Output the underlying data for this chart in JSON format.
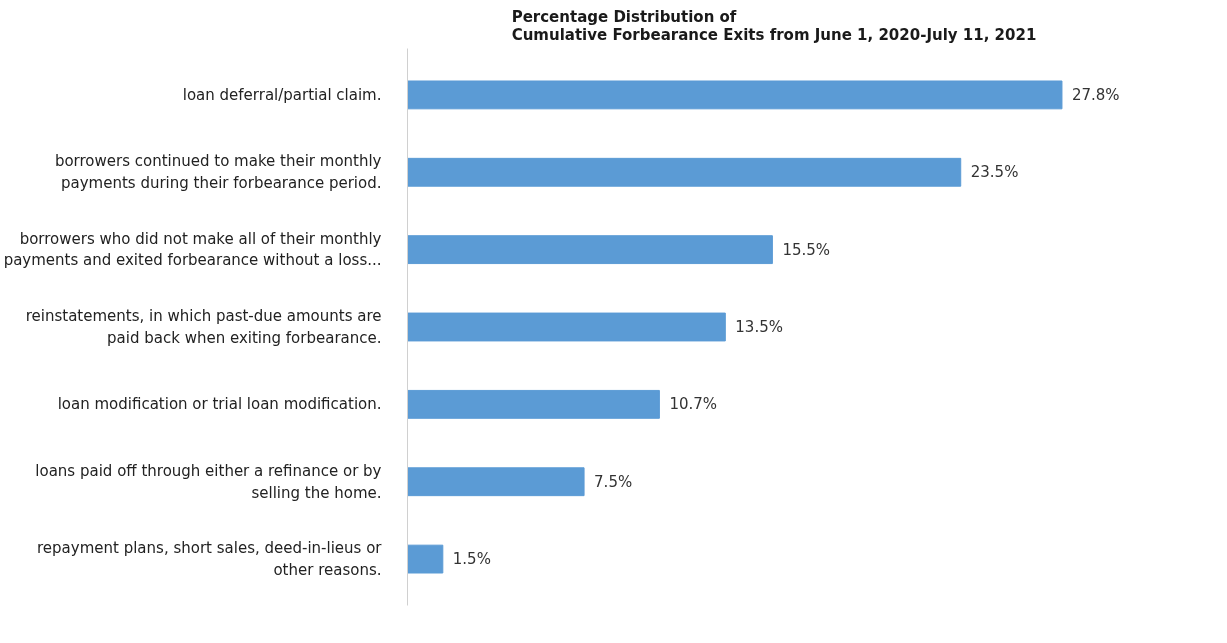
{
  "chart_data": {
    "type": "bar",
    "orientation": "horizontal",
    "title": "Percentage Distribution of\nCumulative Forbearance Exits from June 1, 2020-July 11, 2021",
    "categories": [
      "loan deferral/partial claim.",
      "borrowers continued to make their monthly\npayments during their forbearance period.",
      "borrowers who did not make all of their monthly\npayments and exited forbearance without a loss...",
      "reinstatements, in which past-due amounts are\npaid back when exiting forbearance.",
      "loan modification or trial loan modification.",
      "loans paid off through either a refinance or by\nselling the home.",
      "repayment plans, short sales, deed-in-lieus or\nother reasons."
    ],
    "values": [
      27.8,
      23.5,
      15.5,
      13.5,
      10.7,
      7.5,
      1.5
    ],
    "value_labels": [
      "27.8%",
      "23.5%",
      "15.5%",
      "13.5%",
      "10.7%",
      "7.5%",
      "1.5%"
    ],
    "color": "#5b9bd5",
    "grid": false
  }
}
